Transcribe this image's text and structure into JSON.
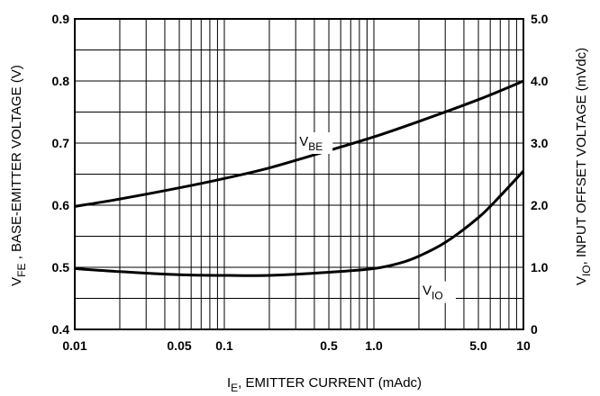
{
  "chart_data": {
    "type": "line",
    "x_scale": "log",
    "xlim": [
      0.01,
      10
    ],
    "ylim": [
      0.4,
      0.9
    ],
    "y2lim": [
      0,
      5.0
    ],
    "grid": true,
    "x_ticks": [
      {
        "value": 0.01,
        "label": "0.01"
      },
      {
        "value": 0.05,
        "label": "0.05"
      },
      {
        "value": 0.1,
        "label": "0.1"
      },
      {
        "value": 0.5,
        "label": "0.5"
      },
      {
        "value": 1.0,
        "label": "1.0"
      },
      {
        "value": 5.0,
        "label": "5.0"
      },
      {
        "value": 10,
        "label": "10"
      }
    ],
    "y_ticks": [
      {
        "value": 0.4,
        "label": "0.4"
      },
      {
        "value": 0.5,
        "label": "0.5"
      },
      {
        "value": 0.6,
        "label": "0.6"
      },
      {
        "value": 0.7,
        "label": "0.7"
      },
      {
        "value": 0.8,
        "label": "0.8"
      },
      {
        "value": 0.9,
        "label": "0.9"
      }
    ],
    "y2_ticks": [
      {
        "value": 0,
        "label": "0"
      },
      {
        "value": 1.0,
        "label": "1.0"
      },
      {
        "value": 2.0,
        "label": "2.0"
      },
      {
        "value": 3.0,
        "label": "3.0"
      },
      {
        "value": 4.0,
        "label": "4.0"
      },
      {
        "value": 5.0,
        "label": "5.0"
      }
    ],
    "xlabel": {
      "main": "I",
      "sub": "E",
      "rest": ", EMITTER CURRENT (mAdc)"
    },
    "ylabel": {
      "main": "V",
      "sub": "FE",
      "rest": " , BASE-EMITTER VOLTAGE (V)"
    },
    "y2label": {
      "main": "V",
      "sub": "IO",
      "rest": ", INPUT OFFSET VOLTAGE (mVdc)"
    },
    "series": [
      {
        "name": {
          "main": "V",
          "sub": "BE"
        },
        "axis": "left",
        "x": [
          0.01,
          0.02,
          0.05,
          0.1,
          0.2,
          0.5,
          1.0,
          2.0,
          5.0,
          10
        ],
        "y": [
          0.598,
          0.61,
          0.628,
          0.643,
          0.66,
          0.688,
          0.71,
          0.735,
          0.77,
          0.8
        ]
      },
      {
        "name": {
          "main": "V",
          "sub": "IO"
        },
        "axis": "right",
        "x": [
          0.01,
          0.02,
          0.05,
          0.1,
          0.2,
          0.5,
          1.0,
          1.5,
          2.0,
          3.0,
          5.0,
          7.0,
          10
        ],
        "y": [
          0.98,
          0.93,
          0.88,
          0.87,
          0.87,
          0.92,
          0.98,
          1.07,
          1.18,
          1.4,
          1.8,
          2.15,
          2.55
        ]
      }
    ]
  }
}
